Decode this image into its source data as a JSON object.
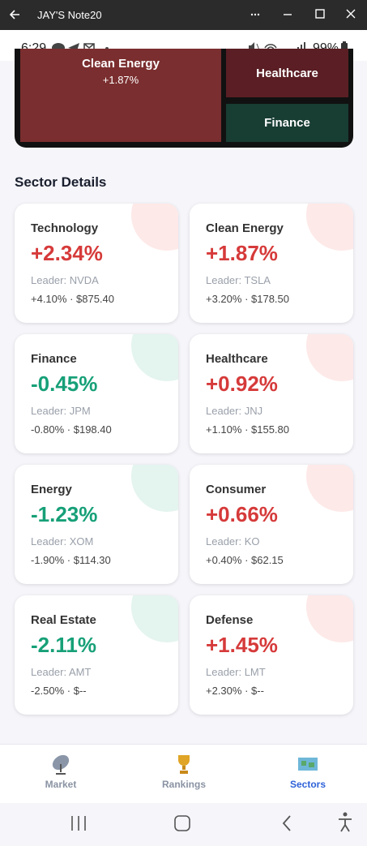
{
  "window": {
    "title": "JAY'S Note20"
  },
  "status_bar": {
    "time": "6:29",
    "battery": "99%"
  },
  "treemap": {
    "tiles": [
      {
        "label": "Clean Energy",
        "change": "+1.87%",
        "color": "#7b2e2f"
      },
      {
        "label": "Healthcare",
        "color": "#5a1e24"
      },
      {
        "label": "Finance",
        "color": "#183d33"
      }
    ]
  },
  "section_title": "Sector Details",
  "cards": [
    {
      "name": "Technology",
      "change": "+2.34%",
      "leader": "Leader: NVDA",
      "detail": "+4.10% · $875.40"
    },
    {
      "name": "Clean Energy",
      "change": "+1.87%",
      "leader": "Leader: TSLA",
      "detail": "+3.20% · $178.50"
    },
    {
      "name": "Finance",
      "change": "-0.45%",
      "leader": "Leader: JPM",
      "detail": "-0.80% · $198.40"
    },
    {
      "name": "Healthcare",
      "change": "+0.92%",
      "leader": "Leader: JNJ",
      "detail": "+1.10% · $155.80"
    },
    {
      "name": "Energy",
      "change": "-1.23%",
      "leader": "Leader: XOM",
      "detail": "-1.90% · $114.30"
    },
    {
      "name": "Consumer",
      "change": "+0.66%",
      "leader": "Leader: KO",
      "detail": "+0.40% · $62.15"
    },
    {
      "name": "Real Estate",
      "change": "-2.11%",
      "leader": "Leader: AMT",
      "detail": "-2.50% · $--"
    },
    {
      "name": "Defense",
      "change": "+1.45%",
      "leader": "Leader: LMT",
      "detail": "+2.30% · $--"
    }
  ],
  "nav": {
    "items": [
      {
        "label": "Market"
      },
      {
        "label": "Rankings"
      },
      {
        "label": "Sectors",
        "active": true
      }
    ]
  }
}
